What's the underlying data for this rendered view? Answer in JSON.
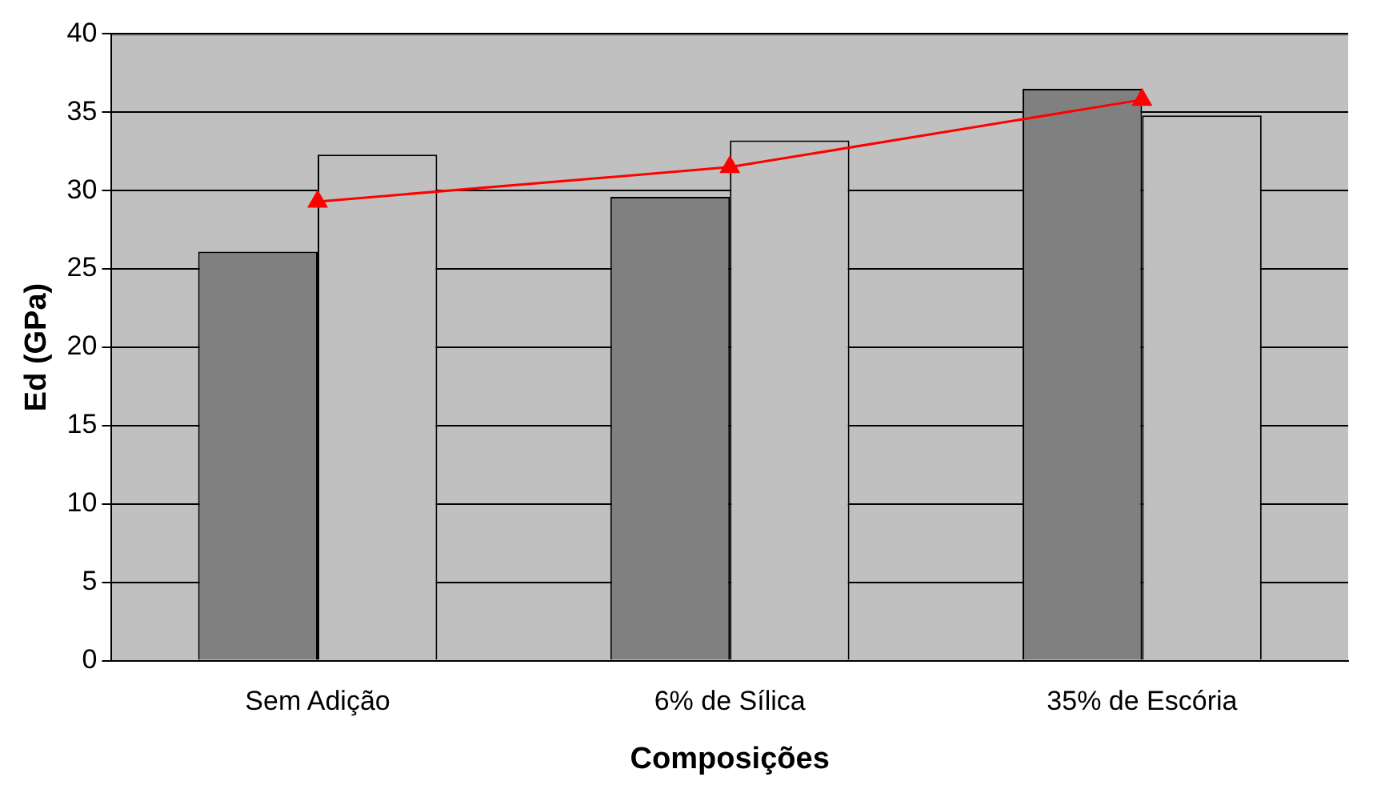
{
  "chart_data": {
    "type": "bar",
    "xlabel": "Composições",
    "ylabel": "Ed (GPa)",
    "categories": [
      "Sem Adição",
      "6% de Sílica",
      "35% de Escória"
    ],
    "series": [
      {
        "color": "#808080",
        "values": [
          26.1,
          29.6,
          36.5
        ]
      },
      {
        "color": "#c0c0c0",
        "values": [
          32.3,
          33.2,
          34.8
        ]
      },
      {
        "type": "line",
        "color": "#ff0000",
        "values": [
          29.3,
          31.5,
          35.8
        ],
        "marker": "triangle"
      }
    ],
    "ylim": [
      0,
      40
    ],
    "yticks": [
      0,
      5,
      10,
      15,
      20,
      25,
      30,
      35,
      40
    ],
    "grid": "y",
    "legend": false
  }
}
